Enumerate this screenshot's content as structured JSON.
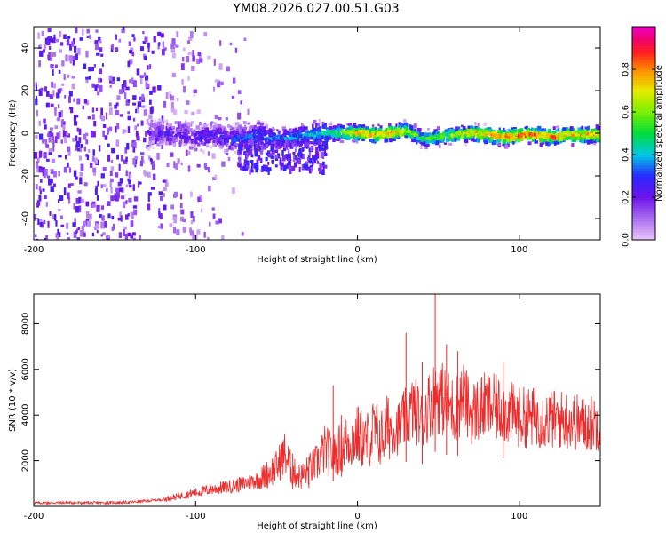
{
  "figure_title": "YM08.2026.027.00.51.G03",
  "colors": {
    "snr_line": "#ee2b2b",
    "frame": "#000000"
  },
  "chart_data": [
    {
      "type": "heatmap",
      "title": "YM08.2026.027.00.51.G03",
      "xlabel": "Height of straight line (km)",
      "ylabel": "Frequency (Hz)",
      "xlim": [
        -200,
        150
      ],
      "ylim": [
        -50,
        50
      ],
      "xticks": [
        -200,
        -100,
        0,
        100
      ],
      "xtick_labels": [
        "-200",
        "-100",
        "0",
        "100"
      ],
      "yticks": [
        -40,
        -20,
        0,
        20,
        40
      ],
      "ytick_labels": [
        "-40",
        "-20",
        "0",
        "20",
        "40"
      ],
      "colorbar": {
        "label": "Normalized spectral amplitude",
        "range": [
          0,
          1
        ],
        "ticks": [
          0.0,
          0.2,
          0.4,
          0.6,
          0.8
        ],
        "tick_labels": [
          "0.0",
          "0.2",
          "0.4",
          "0.6",
          "0.8"
        ]
      },
      "ridge_frequency_hz": {
        "x": [
          -130,
          -120,
          -110,
          -100,
          -90,
          -80,
          -70,
          -60,
          -50,
          -40,
          -30,
          -20,
          -10,
          0,
          10,
          20,
          30,
          40,
          50,
          60,
          70,
          80,
          90,
          100,
          110,
          120,
          130,
          140,
          150
        ],
        "y": [
          0,
          1,
          0,
          -1,
          0,
          -2,
          -1,
          0,
          -2,
          -1,
          0,
          1,
          1,
          1,
          0,
          1,
          2,
          -2,
          -1,
          0,
          1,
          0,
          -1,
          0,
          0,
          -1,
          0,
          0,
          0
        ]
      },
      "ridge_amplitude": {
        "x": [
          -200,
          -150,
          -120,
          -100,
          -80,
          -60,
          -40,
          -20,
          0,
          20,
          40,
          60,
          80,
          100,
          120,
          150
        ],
        "y": [
          0.2,
          0.2,
          0.3,
          0.3,
          0.35,
          0.4,
          0.45,
          0.55,
          0.85,
          0.9,
          0.6,
          0.75,
          0.9,
          0.95,
          0.9,
          0.85
        ]
      }
    },
    {
      "type": "line",
      "xlabel": "Height of straight line (km)",
      "ylabel": "SNR (10 * v/v)",
      "xlim": [
        -200,
        150
      ],
      "ylim": [
        0,
        9300
      ],
      "xticks": [
        -200,
        -100,
        0,
        100
      ],
      "xtick_labels": [
        "-200",
        "-100",
        "0",
        "100"
      ],
      "yticks": [
        2000,
        4000,
        6000,
        8000
      ],
      "ytick_labels": [
        "2000",
        "4000",
        "6000",
        "8000"
      ],
      "series": [
        {
          "name": "SNR",
          "x": [
            -200,
            -180,
            -160,
            -140,
            -120,
            -110,
            -100,
            -90,
            -80,
            -70,
            -60,
            -50,
            -45,
            -40,
            -35,
            -30,
            -25,
            -20,
            -15,
            -10,
            -5,
            0,
            5,
            10,
            15,
            20,
            25,
            30,
            35,
            40,
            45,
            50,
            55,
            60,
            65,
            70,
            80,
            90,
            100,
            110,
            120,
            130,
            140,
            150
          ],
          "y": [
            150,
            160,
            150,
            180,
            300,
            450,
            600,
            750,
            850,
            1000,
            1200,
            1700,
            2300,
            1500,
            1300,
            1600,
            1900,
            2500,
            2200,
            2600,
            2900,
            3100,
            2800,
            3300,
            3000,
            3600,
            3400,
            3900,
            4300,
            3700,
            4600,
            4900,
            4500,
            4200,
            4800,
            4100,
            4400,
            4200,
            3900,
            3900,
            3800,
            3800,
            3600,
            3700
          ]
        }
      ],
      "peaks": {
        "x": [
          -40,
          -30,
          -15,
          -10,
          30,
          40,
          48,
          55,
          62,
          90
        ],
        "y": [
          2300,
          2150,
          5300,
          4000,
          7600,
          6300,
          9300,
          7100,
          6800,
          6300
        ]
      }
    }
  ]
}
